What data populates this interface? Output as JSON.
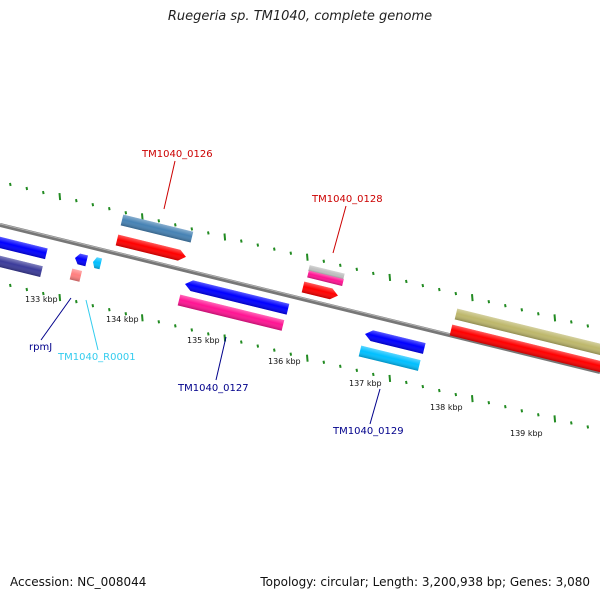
{
  "title": "Ruegeria sp. TM1040, complete genome",
  "footer": {
    "accession": "Accession: NC_008044",
    "topology": "Topology: circular; Length: 3,200,938 bp; Genes: 3,080"
  },
  "scale_labels": [
    "133 kbp",
    "134 kbp",
    "135 kbp",
    "136 kbp",
    "137 kbp",
    "138 kbp",
    "139 kbp"
  ],
  "gene_labels": [
    {
      "name": "rpmJ",
      "color": "#00008b"
    },
    {
      "name": "TM1040_R0001",
      "color": "#33ccee"
    },
    {
      "name": "TM1040_0126",
      "color": "#cc0000"
    },
    {
      "name": "TM1040_0127",
      "color": "#00008b"
    },
    {
      "name": "TM1040_0128",
      "color": "#cc0000"
    },
    {
      "name": "TM1040_0129",
      "color": "#00008b"
    }
  ],
  "colors": {
    "backbone": "#808080",
    "tick": "#228b22",
    "forward_cds": "#ff0000",
    "reverse_cds": "#0000ff",
    "pink_feature": "#ff1493",
    "steelblue_feature": "#4682b4",
    "cyan_feature": "#00bfff",
    "khaki_feature": "#bdb76b",
    "navy_feature": "#3b3b9a",
    "rrna_light": "#ff7f7f",
    "gray_feature": "#bfbfbf"
  }
}
